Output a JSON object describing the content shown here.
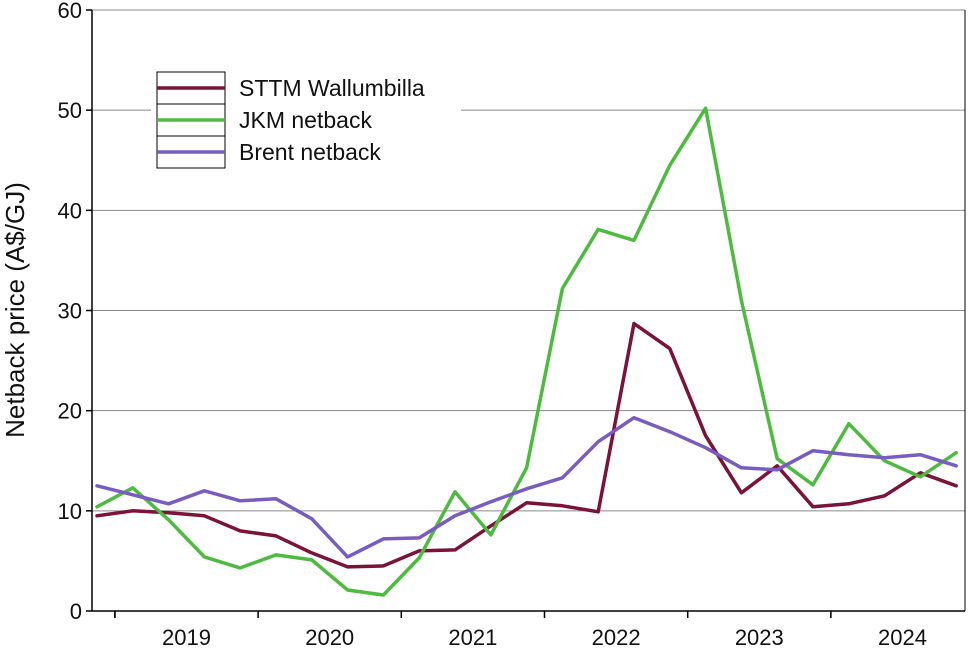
{
  "chart_data": {
    "type": "line",
    "title": "",
    "xlabel": "",
    "ylabel": "Netback price (A$/GJ)",
    "ylim": [
      0,
      60
    ],
    "yticks": [
      0,
      10,
      20,
      30,
      40,
      50,
      60
    ],
    "year_labels": [
      "2019",
      "2020",
      "2021",
      "2022",
      "2023",
      "2024"
    ],
    "x_quarters": [
      "2018 Q4",
      "2019 Q1",
      "2019 Q2",
      "2019 Q3",
      "2019 Q4",
      "2020 Q1",
      "2020 Q2",
      "2020 Q3",
      "2020 Q4",
      "2021 Q1",
      "2021 Q2",
      "2021 Q3",
      "2021 Q4",
      "2022 Q1",
      "2022 Q2",
      "2022 Q3",
      "2022 Q4",
      "2023 Q1",
      "2023 Q2",
      "2023 Q3",
      "2023 Q4",
      "2024 Q1",
      "2024 Q2",
      "2024 Q3",
      "2024 Q4",
      "2025 Q1"
    ],
    "grid": "horizontal",
    "legend_position": "top-left",
    "series": [
      {
        "name": "STTM Wallumbilla",
        "color": "#7b1239",
        "values": [
          9.5,
          10.0,
          9.8,
          9.5,
          8.0,
          7.5,
          5.8,
          4.4,
          4.5,
          6.0,
          6.1,
          8.5,
          10.8,
          10.5,
          9.9,
          28.7,
          26.2,
          17.5,
          11.8,
          14.5,
          10.4,
          10.7,
          11.5,
          13.8,
          12.5,
          null
        ],
        "x_start_index": 0
      },
      {
        "name": "JKM netback",
        "color": "#4dbb3f",
        "values": [
          10.4,
          12.3,
          9.1,
          5.4,
          4.3,
          5.6,
          5.1,
          2.1,
          1.6,
          5.3,
          11.9,
          7.6,
          14.3,
          32.2,
          38.1,
          37.0,
          44.5,
          50.2,
          31.0,
          15.2,
          12.6,
          18.7,
          15.0,
          13.4,
          15.8,
          null
        ],
        "x_start_index": 0
      },
      {
        "name": "Brent netback",
        "color": "#7a5bbf",
        "values": [
          12.5,
          11.6,
          10.7,
          12.0,
          11.0,
          11.2,
          9.2,
          5.4,
          7.2,
          7.3,
          9.5,
          10.9,
          12.2,
          13.3,
          16.9,
          19.3,
          17.9,
          16.3,
          14.3,
          14.1,
          16.0,
          15.6,
          15.3,
          15.6,
          14.5,
          null
        ],
        "x_start_index": 0
      }
    ]
  }
}
